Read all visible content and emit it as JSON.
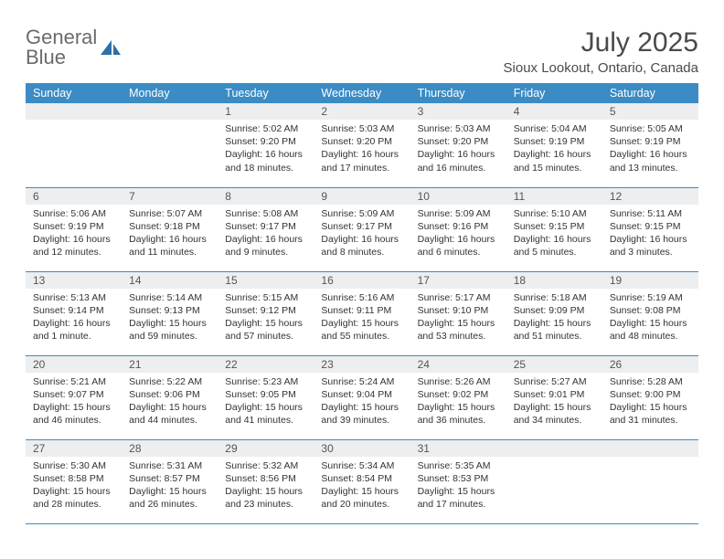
{
  "logo": {
    "line1": "General",
    "line2": "Blue",
    "icon_color": "#2f6fa8"
  },
  "title": "July 2025",
  "location": "Sioux Lookout, Ontario, Canada",
  "colors": {
    "header_bg": "#3b8bc4",
    "header_text": "#ffffff",
    "daynum_bg": "#eceeef",
    "row_border": "#3b8bc4",
    "body_text": "#333333",
    "logo_gray": "#6b6b6b"
  },
  "day_headers": [
    "Sunday",
    "Monday",
    "Tuesday",
    "Wednesday",
    "Thursday",
    "Friday",
    "Saturday"
  ],
  "weeks": [
    [
      null,
      null,
      {
        "n": "1",
        "sunrise": "5:02 AM",
        "sunset": "9:20 PM",
        "day_h": "16",
        "day_m": "18 minutes"
      },
      {
        "n": "2",
        "sunrise": "5:03 AM",
        "sunset": "9:20 PM",
        "day_h": "16",
        "day_m": "17 minutes"
      },
      {
        "n": "3",
        "sunrise": "5:03 AM",
        "sunset": "9:20 PM",
        "day_h": "16",
        "day_m": "16 minutes"
      },
      {
        "n": "4",
        "sunrise": "5:04 AM",
        "sunset": "9:19 PM",
        "day_h": "16",
        "day_m": "15 minutes"
      },
      {
        "n": "5",
        "sunrise": "5:05 AM",
        "sunset": "9:19 PM",
        "day_h": "16",
        "day_m": "13 minutes"
      }
    ],
    [
      {
        "n": "6",
        "sunrise": "5:06 AM",
        "sunset": "9:19 PM",
        "day_h": "16",
        "day_m": "12 minutes"
      },
      {
        "n": "7",
        "sunrise": "5:07 AM",
        "sunset": "9:18 PM",
        "day_h": "16",
        "day_m": "11 minutes"
      },
      {
        "n": "8",
        "sunrise": "5:08 AM",
        "sunset": "9:17 PM",
        "day_h": "16",
        "day_m": "9 minutes"
      },
      {
        "n": "9",
        "sunrise": "5:09 AM",
        "sunset": "9:17 PM",
        "day_h": "16",
        "day_m": "8 minutes"
      },
      {
        "n": "10",
        "sunrise": "5:09 AM",
        "sunset": "9:16 PM",
        "day_h": "16",
        "day_m": "6 minutes"
      },
      {
        "n": "11",
        "sunrise": "5:10 AM",
        "sunset": "9:15 PM",
        "day_h": "16",
        "day_m": "5 minutes"
      },
      {
        "n": "12",
        "sunrise": "5:11 AM",
        "sunset": "9:15 PM",
        "day_h": "16",
        "day_m": "3 minutes"
      }
    ],
    [
      {
        "n": "13",
        "sunrise": "5:13 AM",
        "sunset": "9:14 PM",
        "day_h": "16",
        "day_m": "1 minute"
      },
      {
        "n": "14",
        "sunrise": "5:14 AM",
        "sunset": "9:13 PM",
        "day_h": "15",
        "day_m": "59 minutes"
      },
      {
        "n": "15",
        "sunrise": "5:15 AM",
        "sunset": "9:12 PM",
        "day_h": "15",
        "day_m": "57 minutes"
      },
      {
        "n": "16",
        "sunrise": "5:16 AM",
        "sunset": "9:11 PM",
        "day_h": "15",
        "day_m": "55 minutes"
      },
      {
        "n": "17",
        "sunrise": "5:17 AM",
        "sunset": "9:10 PM",
        "day_h": "15",
        "day_m": "53 minutes"
      },
      {
        "n": "18",
        "sunrise": "5:18 AM",
        "sunset": "9:09 PM",
        "day_h": "15",
        "day_m": "51 minutes"
      },
      {
        "n": "19",
        "sunrise": "5:19 AM",
        "sunset": "9:08 PM",
        "day_h": "15",
        "day_m": "48 minutes"
      }
    ],
    [
      {
        "n": "20",
        "sunrise": "5:21 AM",
        "sunset": "9:07 PM",
        "day_h": "15",
        "day_m": "46 minutes"
      },
      {
        "n": "21",
        "sunrise": "5:22 AM",
        "sunset": "9:06 PM",
        "day_h": "15",
        "day_m": "44 minutes"
      },
      {
        "n": "22",
        "sunrise": "5:23 AM",
        "sunset": "9:05 PM",
        "day_h": "15",
        "day_m": "41 minutes"
      },
      {
        "n": "23",
        "sunrise": "5:24 AM",
        "sunset": "9:04 PM",
        "day_h": "15",
        "day_m": "39 minutes"
      },
      {
        "n": "24",
        "sunrise": "5:26 AM",
        "sunset": "9:02 PM",
        "day_h": "15",
        "day_m": "36 minutes"
      },
      {
        "n": "25",
        "sunrise": "5:27 AM",
        "sunset": "9:01 PM",
        "day_h": "15",
        "day_m": "34 minutes"
      },
      {
        "n": "26",
        "sunrise": "5:28 AM",
        "sunset": "9:00 PM",
        "day_h": "15",
        "day_m": "31 minutes"
      }
    ],
    [
      {
        "n": "27",
        "sunrise": "5:30 AM",
        "sunset": "8:58 PM",
        "day_h": "15",
        "day_m": "28 minutes"
      },
      {
        "n": "28",
        "sunrise": "5:31 AM",
        "sunset": "8:57 PM",
        "day_h": "15",
        "day_m": "26 minutes"
      },
      {
        "n": "29",
        "sunrise": "5:32 AM",
        "sunset": "8:56 PM",
        "day_h": "15",
        "day_m": "23 minutes"
      },
      {
        "n": "30",
        "sunrise": "5:34 AM",
        "sunset": "8:54 PM",
        "day_h": "15",
        "day_m": "20 minutes"
      },
      {
        "n": "31",
        "sunrise": "5:35 AM",
        "sunset": "8:53 PM",
        "day_h": "15",
        "day_m": "17 minutes"
      },
      null,
      null
    ]
  ],
  "labels": {
    "sunrise": "Sunrise:",
    "sunset": "Sunset:",
    "daylight": "Daylight:",
    "hours_word": "hours",
    "and_word": "and"
  }
}
